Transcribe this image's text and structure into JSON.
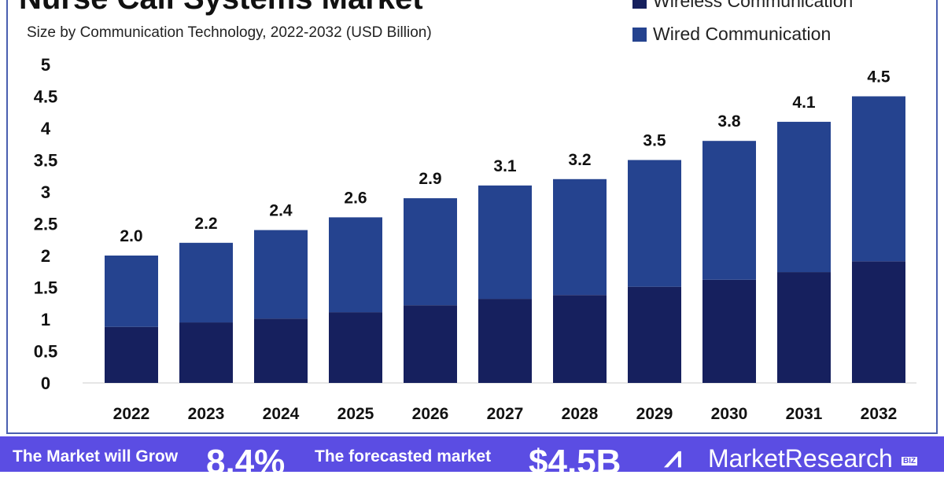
{
  "title": "Nurse Call Systems Market",
  "subtitle": "Size by Communication Technology, 2022-2032 (USD Billion)",
  "colors": {
    "wireless": "#16205e",
    "wired": "#25438f",
    "banner": "#5b4de3"
  },
  "banner": {
    "grow_label": "The Market will Grow",
    "grow_value": "8.4%",
    "forecast_label": "The forecasted market",
    "forecast_value": "$4.5B",
    "brand": "MarketResearch",
    "brand_suffix": "BIZ"
  },
  "chart_data": {
    "type": "stacked-bar",
    "categories": [
      "2022",
      "2023",
      "2024",
      "2025",
      "2026",
      "2027",
      "2028",
      "2029",
      "2030",
      "2031",
      "2032"
    ],
    "series": [
      {
        "name": "Wireless Communication",
        "values": [
          0.88,
          0.95,
          1.01,
          1.11,
          1.22,
          1.32,
          1.38,
          1.51,
          1.62,
          1.74,
          1.91
        ]
      },
      {
        "name": "Wired Communication",
        "values": [
          1.12,
          1.25,
          1.39,
          1.49,
          1.68,
          1.78,
          1.82,
          1.99,
          2.18,
          2.36,
          2.59
        ]
      }
    ],
    "totals": [
      "2.0",
      "2.2",
      "2.4",
      "2.6",
      "2.9",
      "3.1",
      "3.2",
      "3.5",
      "3.8",
      "4.1",
      "4.5"
    ],
    "yticks": [
      "0",
      "0.5",
      "1",
      "1.5",
      "2",
      "2.5",
      "3",
      "3.5",
      "4",
      "4.5",
      "5"
    ],
    "ylim": [
      0,
      5
    ],
    "grid": false,
    "legend": "top-right"
  }
}
